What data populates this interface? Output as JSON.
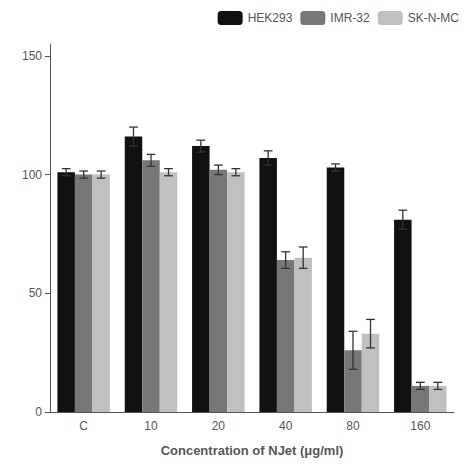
{
  "chart_data": {
    "type": "bar",
    "xlabel": "Concentration of NJet (μg/ml)",
    "categories": [
      "C",
      "10",
      "20",
      "40",
      "80",
      "160"
    ],
    "series": [
      {
        "name": "HEK293",
        "color": "#111111",
        "values": [
          101,
          116,
          112,
          107,
          103,
          81
        ],
        "error": [
          1.5,
          4.0,
          2.5,
          3.0,
          1.5,
          4.0
        ]
      },
      {
        "name": "IMR-32",
        "color": "#777777",
        "values": [
          100,
          106,
          102,
          64,
          26,
          11
        ],
        "error": [
          1.5,
          2.5,
          2.0,
          3.5,
          8.0,
          1.5
        ]
      },
      {
        "name": "SK-N-MC",
        "color": "#c0c0c0",
        "values": [
          100,
          101,
          101,
          65,
          33,
          11
        ],
        "error": [
          1.5,
          1.5,
          1.5,
          4.5,
          6.0,
          1.5
        ]
      }
    ],
    "ylim": [
      0,
      155
    ],
    "yticks": [
      0,
      50,
      100,
      150
    ],
    "grid": false,
    "legend": "upper right"
  }
}
